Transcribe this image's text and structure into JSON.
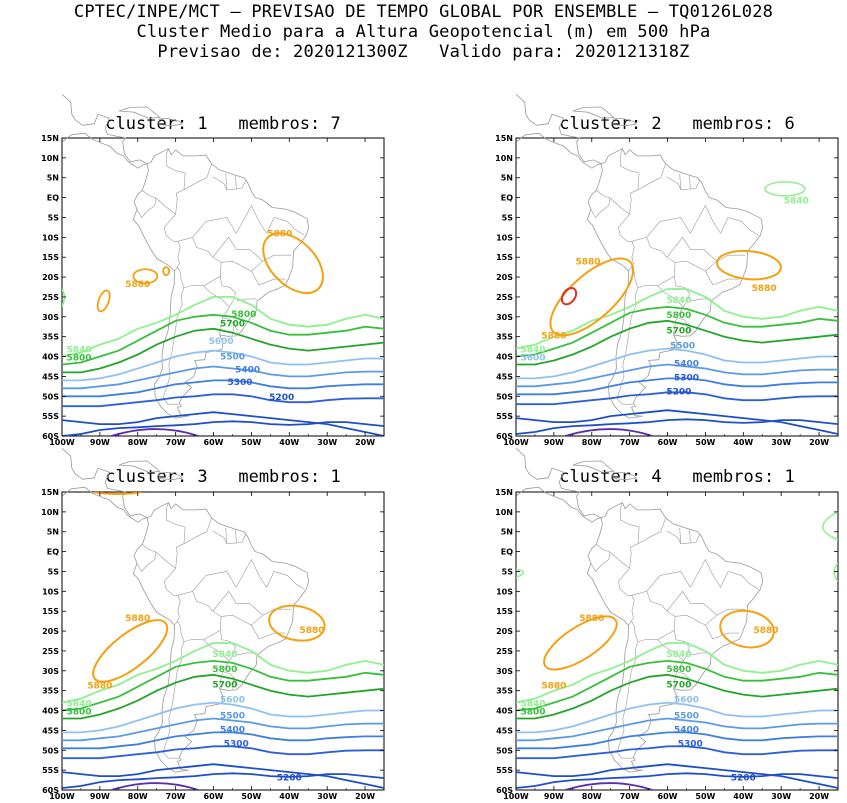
{
  "header": {
    "line1": "CPTEC/INPE/MCT – PREVISAO DE TEMPO GLOBAL POR ENSEMBLE – TQ0126L028",
    "line2": "Cluster Medio para a Altura Geopotencial (m) em 500 hPa",
    "line3": "Previsao de: 2020121300Z   Valido para: 2020121318Z"
  },
  "axes": {
    "lat_labels": [
      "15N",
      "10N",
      "5N",
      "EQ",
      "5S",
      "10S",
      "15S",
      "20S",
      "25S",
      "30S",
      "35S",
      "40S",
      "45S",
      "50S",
      "55S",
      "60S"
    ],
    "lon_labels": [
      "100W",
      "90W",
      "80W",
      "70W",
      "60W",
      "50W",
      "40W",
      "30W",
      "20W"
    ]
  },
  "colors": {
    "c5200": "#1f4fc8",
    "c5300": "#2d60d8",
    "c5400": "#3f7fe0",
    "c5500": "#5a9ae6",
    "c5600": "#8ec0f0",
    "c5700": "#22a52a",
    "c5800": "#38c03c",
    "c5840": "#8ef08e",
    "c5880": "#f5a011",
    "c5900": "#e0301e",
    "c5100": "#5b2fb0",
    "coast": "#9a9a9a"
  },
  "panels": [
    {
      "title": "cluster: 1   membros: 7",
      "labels": [
        "5880",
        "5880",
        "5800",
        "5700",
        "5840",
        "5800",
        "5600",
        "5500",
        "5400",
        "5300",
        "5200"
      ]
    },
    {
      "title": "cluster: 2   membros: 6",
      "labels": [
        "5840",
        "5880",
        "5880",
        "5880",
        "5840",
        "5800",
        "5700",
        "5840",
        "5600",
        "5500",
        "5400",
        "5300",
        "5200"
      ]
    },
    {
      "title": "cluster: 3   membros: 1",
      "labels": [
        "5880",
        "5880",
        "5880",
        "5840",
        "5800",
        "5700",
        "5840",
        "5800",
        "5600",
        "5500",
        "5400",
        "5300",
        "5200"
      ]
    },
    {
      "title": "cluster: 4   membros: 1",
      "labels": [
        "5880",
        "5880",
        "5880",
        "5840",
        "5800",
        "5700",
        "5840",
        "5800",
        "5600",
        "5500",
        "5400",
        "5300",
        "5200"
      ]
    }
  ]
}
